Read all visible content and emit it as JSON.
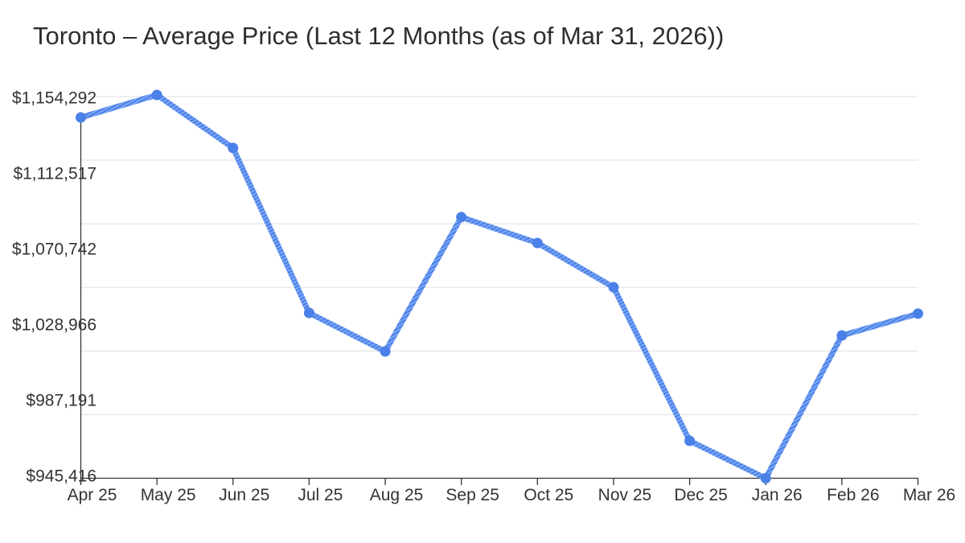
{
  "chart_data": {
    "type": "line",
    "title": "Toronto – Average Price (Last 12 Months (as of Mar 31, 2026))",
    "series_name": "Average Price",
    "categories": [
      "Apr 25",
      "May 25",
      "Jun 25",
      "Jul 25",
      "Aug 25",
      "Sep 25",
      "Oct 25",
      "Nov 25",
      "Dec 25",
      "Jan 26",
      "Feb 26",
      "Mar 26"
    ],
    "values": [
      1142000,
      1154292,
      1125400,
      1035500,
      1014500,
      1087700,
      1073600,
      1049500,
      965800,
      945416,
      1023200,
      1035100
    ],
    "xlabel": "",
    "ylabel": "",
    "ylim": [
      945416,
      1154292
    ],
    "y_tick_labels": [
      "$1,154,292",
      "$1,112,517",
      "$1,070,742",
      "$1,028,966",
      "$987,191",
      "$945,416"
    ],
    "grid": "horizontal",
    "legend_position": "none",
    "colors": {
      "line_stripe_dark": "#4a80e8",
      "line_stripe_light": "#7da7f3",
      "marker": "#4a80e8",
      "axis": "#333333",
      "gridline": "#e7e7e7",
      "tick_text": "#333333",
      "title_text": "#2e2e2e",
      "background": "#ffffff"
    }
  }
}
